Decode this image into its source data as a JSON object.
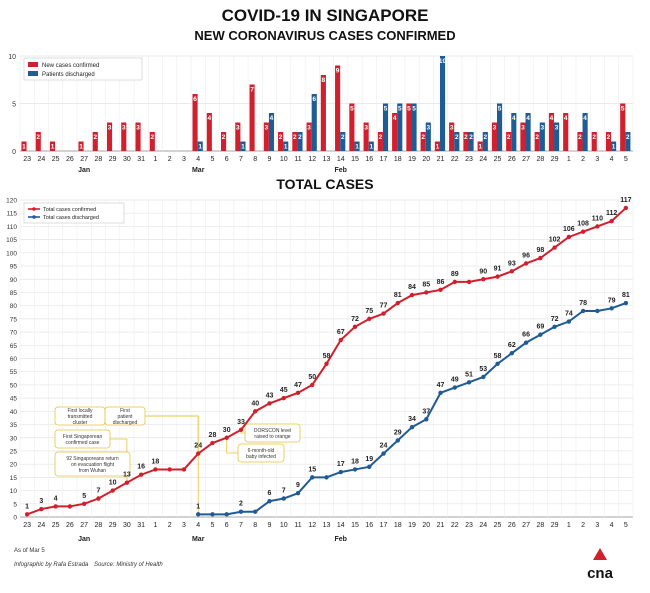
{
  "header": {
    "title": "COVID-19 IN SINGAPORE",
    "subtitle": "NEW CORONAVIRUS CASES CONFIRMED",
    "total_title": "TOTAL CASES"
  },
  "footer": {
    "as_of": "As of Mar 5",
    "credit": "Infographic by Rafa Estrada",
    "source": "Source: Ministry of Health",
    "logo_text": "cna"
  },
  "colors": {
    "confirmed": "#d0202e",
    "discharged": "#1f5b94",
    "annotation_border": "#e8c23a"
  },
  "chart_data": [
    {
      "type": "bar",
      "title": "NEW CORONAVIRUS CASES CONFIRMED",
      "ylim": [
        0,
        10
      ],
      "y_ticks": [
        0,
        5,
        10
      ],
      "grid": true,
      "legend_position": "top-left",
      "x_ticks": [
        "23",
        "24",
        "25",
        "26",
        "27",
        "28",
        "29",
        "30",
        "31",
        "1",
        "2",
        "3",
        "4",
        "5",
        "6",
        "7",
        "8",
        "9",
        "10",
        "11",
        "12",
        "13",
        "14",
        "15",
        "16",
        "17",
        "18",
        "19",
        "20",
        "21",
        "22",
        "23",
        "24",
        "25",
        "26",
        "27",
        "28",
        "29",
        "1",
        "2",
        "3",
        "4",
        "5"
      ],
      "month_labels": [
        {
          "label": "Jan",
          "at": "27"
        },
        {
          "label": "Feb",
          "at": "14"
        },
        {
          "label": "Mar",
          "at": "4"
        }
      ],
      "series": [
        {
          "name": "New cases confirmed",
          "color": "#d0202e",
          "values": [
            1,
            2,
            1,
            0,
            1,
            2,
            3,
            3,
            3,
            2,
            0,
            0,
            6,
            4,
            2,
            3,
            7,
            3,
            2,
            2,
            3,
            8,
            9,
            5,
            3,
            2,
            4,
            5,
            2,
            1,
            3,
            2,
            1,
            3,
            2,
            3,
            2,
            4,
            4,
            2,
            2,
            2,
            5
          ]
        },
        {
          "name": "Patients discharged",
          "color": "#1f5b94",
          "values": [
            0,
            0,
            0,
            0,
            0,
            0,
            0,
            0,
            0,
            0,
            0,
            0,
            1,
            0,
            0,
            1,
            0,
            4,
            1,
            2,
            6,
            0,
            2,
            1,
            1,
            5,
            5,
            5,
            3,
            10,
            2,
            2,
            2,
            5,
            4,
            4,
            3,
            3,
            0,
            4,
            0,
            1,
            2
          ]
        }
      ]
    },
    {
      "type": "line",
      "title": "TOTAL CASES",
      "ylim": [
        0,
        120
      ],
      "y_ticks": [
        0,
        5,
        10,
        15,
        20,
        25,
        30,
        35,
        40,
        45,
        50,
        55,
        60,
        65,
        70,
        75,
        80,
        85,
        90,
        95,
        100,
        105,
        110,
        115,
        120
      ],
      "grid": true,
      "legend_position": "top-left",
      "x_ticks": [
        "23",
        "24",
        "25",
        "26",
        "27",
        "28",
        "29",
        "30",
        "31",
        "1",
        "2",
        "3",
        "4",
        "5",
        "6",
        "7",
        "8",
        "9",
        "10",
        "11",
        "12",
        "13",
        "14",
        "15",
        "16",
        "17",
        "18",
        "19",
        "20",
        "21",
        "22",
        "23",
        "24",
        "25",
        "26",
        "27",
        "28",
        "29",
        "1",
        "2",
        "3",
        "4",
        "5"
      ],
      "month_labels": [
        {
          "label": "Jan",
          "at": "27"
        },
        {
          "label": "Feb",
          "at": "14"
        },
        {
          "label": "Mar",
          "at": "4"
        }
      ],
      "series": [
        {
          "name": "Total cases confirmed",
          "color": "#d0202e",
          "values": [
            1,
            3,
            4,
            4,
            5,
            7,
            10,
            13,
            16,
            18,
            18,
            18,
            24,
            28,
            30,
            33,
            40,
            43,
            45,
            47,
            50,
            58,
            67,
            72,
            75,
            77,
            81,
            84,
            85,
            86,
            89,
            89,
            90,
            91,
            93,
            96,
            98,
            102,
            106,
            108,
            110,
            112,
            117
          ],
          "labeled_values": [
            1,
            3,
            4,
            null,
            5,
            7,
            10,
            13,
            16,
            18,
            null,
            null,
            24,
            28,
            30,
            33,
            40,
            43,
            45,
            47,
            50,
            58,
            67,
            72,
            75,
            77,
            81,
            84,
            85,
            86,
            89,
            null,
            90,
            91,
            93,
            96,
            98,
            102,
            106,
            108,
            110,
            112,
            117
          ]
        },
        {
          "name": "Total cases discharged",
          "color": "#1f5b94",
          "values": [
            null,
            null,
            null,
            null,
            null,
            null,
            null,
            null,
            null,
            null,
            null,
            null,
            1,
            1,
            1,
            2,
            2,
            6,
            7,
            9,
            15,
            15,
            17,
            18,
            19,
            24,
            29,
            34,
            37,
            47,
            49,
            51,
            53,
            58,
            62,
            66,
            69,
            72,
            74,
            78,
            78,
            79,
            81
          ],
          "labeled_values": [
            null,
            null,
            null,
            null,
            null,
            null,
            null,
            null,
            null,
            null,
            null,
            null,
            1,
            null,
            null,
            2,
            null,
            6,
            7,
            9,
            15,
            null,
            17,
            18,
            19,
            24,
            29,
            34,
            37,
            47,
            49,
            51,
            53,
            58,
            62,
            66,
            69,
            72,
            74,
            78,
            null,
            79,
            81
          ]
        }
      ],
      "annotations": [
        {
          "text": "First locally transmitted cluster",
          "at": "4"
        },
        {
          "text": "First patient discharged",
          "at": "4"
        },
        {
          "text": "First Singaporean confirmed case",
          "at": "30"
        },
        {
          "text": "92 Singaporeans return on evacuation flight from Wuhan",
          "at": "30"
        },
        {
          "text": "DORSCON level raised to orange",
          "at": "7"
        },
        {
          "text": "6-month-old baby infected",
          "at": "6"
        }
      ]
    }
  ]
}
